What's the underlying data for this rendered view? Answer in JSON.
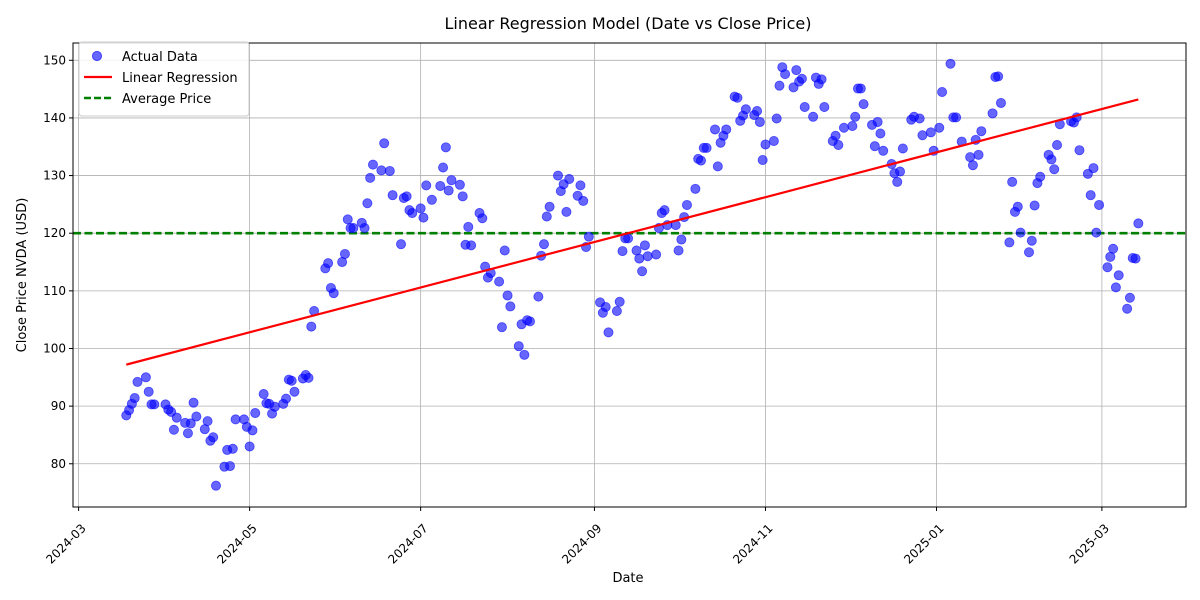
{
  "chart_data": {
    "type": "scatter",
    "title": "Linear Regression Model (Date vs Close Price)",
    "xlabel": "Date",
    "ylabel": "Close Price NVDA (USD)",
    "grid": true,
    "legend_position": "top-left",
    "xlim": [
      "2024-02-28",
      "2025-03-31"
    ],
    "ylim": [
      72.5,
      153
    ],
    "x_ticks": [
      "2024-03",
      "2024-05",
      "2024-07",
      "2024-09",
      "2024-11",
      "2025-01",
      "2025-03"
    ],
    "y_ticks": [
      80,
      90,
      100,
      110,
      120,
      130,
      140,
      150
    ],
    "series": [
      {
        "name": "Actual Data",
        "kind": "scatter",
        "color": "#0000ff",
        "points": [
          [
            "2024-03-18",
            88.4
          ],
          [
            "2024-03-19",
            89.3
          ],
          [
            "2024-03-20",
            90.4
          ],
          [
            "2024-03-21",
            91.4
          ],
          [
            "2024-03-22",
            94.2
          ],
          [
            "2024-03-25",
            95.0
          ],
          [
            "2024-03-26",
            92.5
          ],
          [
            "2024-03-27",
            90.3
          ],
          [
            "2024-03-28",
            90.3
          ],
          [
            "2024-04-01",
            90.3
          ],
          [
            "2024-04-02",
            89.4
          ],
          [
            "2024-04-03",
            89.0
          ],
          [
            "2024-04-04",
            85.9
          ],
          [
            "2024-04-05",
            88.0
          ],
          [
            "2024-04-08",
            87.1
          ],
          [
            "2024-04-09",
            85.3
          ],
          [
            "2024-04-10",
            87.0
          ],
          [
            "2024-04-11",
            90.6
          ],
          [
            "2024-04-12",
            88.2
          ],
          [
            "2024-04-15",
            86.0
          ],
          [
            "2024-04-16",
            87.4
          ],
          [
            "2024-04-17",
            84.0
          ],
          [
            "2024-04-18",
            84.6
          ],
          [
            "2024-04-19",
            76.2
          ],
          [
            "2024-04-22",
            79.5
          ],
          [
            "2024-04-23",
            82.4
          ],
          [
            "2024-04-24",
            79.6
          ],
          [
            "2024-04-25",
            82.6
          ],
          [
            "2024-04-26",
            87.7
          ],
          [
            "2024-04-29",
            87.7
          ],
          [
            "2024-04-30",
            86.4
          ],
          [
            "2024-05-01",
            83.0
          ],
          [
            "2024-05-02",
            85.8
          ],
          [
            "2024-05-03",
            88.8
          ],
          [
            "2024-05-06",
            92.1
          ],
          [
            "2024-05-07",
            90.5
          ],
          [
            "2024-05-08",
            90.4
          ],
          [
            "2024-05-09",
            88.7
          ],
          [
            "2024-05-10",
            89.9
          ],
          [
            "2024-05-13",
            90.4
          ],
          [
            "2024-05-14",
            91.3
          ],
          [
            "2024-05-15",
            94.6
          ],
          [
            "2024-05-16",
            94.4
          ],
          [
            "2024-05-17",
            92.5
          ],
          [
            "2024-05-20",
            94.8
          ],
          [
            "2024-05-21",
            95.4
          ],
          [
            "2024-05-22",
            94.9
          ],
          [
            "2024-05-23",
            103.8
          ],
          [
            "2024-05-24",
            106.5
          ],
          [
            "2024-05-28",
            113.9
          ],
          [
            "2024-05-29",
            114.8
          ],
          [
            "2024-05-30",
            110.5
          ],
          [
            "2024-05-31",
            109.6
          ],
          [
            "2024-06-03",
            115.0
          ],
          [
            "2024-06-04",
            116.4
          ],
          [
            "2024-06-05",
            122.4
          ],
          [
            "2024-06-06",
            120.9
          ],
          [
            "2024-06-07",
            120.9
          ],
          [
            "2024-06-10",
            121.8
          ],
          [
            "2024-06-11",
            120.9
          ],
          [
            "2024-06-12",
            125.2
          ],
          [
            "2024-06-13",
            129.6
          ],
          [
            "2024-06-14",
            131.9
          ],
          [
            "2024-06-17",
            130.9
          ],
          [
            "2024-06-18",
            135.6
          ],
          [
            "2024-06-20",
            130.8
          ],
          [
            "2024-06-21",
            126.6
          ],
          [
            "2024-06-24",
            118.1
          ],
          [
            "2024-06-25",
            126.1
          ],
          [
            "2024-06-26",
            126.4
          ],
          [
            "2024-06-27",
            124.0
          ],
          [
            "2024-06-28",
            123.5
          ],
          [
            "2024-07-01",
            124.3
          ],
          [
            "2024-07-02",
            122.7
          ],
          [
            "2024-07-03",
            128.3
          ],
          [
            "2024-07-05",
            125.8
          ],
          [
            "2024-07-08",
            128.2
          ],
          [
            "2024-07-09",
            131.4
          ],
          [
            "2024-07-10",
            134.9
          ],
          [
            "2024-07-11",
            127.4
          ],
          [
            "2024-07-12",
            129.2
          ],
          [
            "2024-07-15",
            128.4
          ],
          [
            "2024-07-16",
            126.4
          ],
          [
            "2024-07-17",
            118.0
          ],
          [
            "2024-07-18",
            121.1
          ],
          [
            "2024-07-19",
            117.9
          ],
          [
            "2024-07-22",
            123.5
          ],
          [
            "2024-07-23",
            122.6
          ],
          [
            "2024-07-24",
            114.2
          ],
          [
            "2024-07-25",
            112.3
          ],
          [
            "2024-07-26",
            113.1
          ],
          [
            "2024-07-29",
            111.6
          ],
          [
            "2024-07-30",
            103.7
          ],
          [
            "2024-07-31",
            117.0
          ],
          [
            "2024-08-01",
            109.2
          ],
          [
            "2024-08-02",
            107.3
          ],
          [
            "2024-08-05",
            100.4
          ],
          [
            "2024-08-06",
            104.2
          ],
          [
            "2024-08-07",
            98.9
          ],
          [
            "2024-08-08",
            104.9
          ],
          [
            "2024-08-09",
            104.7
          ],
          [
            "2024-08-12",
            109.0
          ],
          [
            "2024-08-13",
            116.1
          ],
          [
            "2024-08-14",
            118.1
          ],
          [
            "2024-08-15",
            122.9
          ],
          [
            "2024-08-16",
            124.6
          ],
          [
            "2024-08-19",
            130.0
          ],
          [
            "2024-08-20",
            127.3
          ],
          [
            "2024-08-21",
            128.5
          ],
          [
            "2024-08-22",
            123.7
          ],
          [
            "2024-08-23",
            129.4
          ],
          [
            "2024-08-26",
            126.5
          ],
          [
            "2024-08-27",
            128.3
          ],
          [
            "2024-08-28",
            125.6
          ],
          [
            "2024-08-29",
            117.6
          ],
          [
            "2024-08-30",
            119.4
          ],
          [
            "2024-09-03",
            108.0
          ],
          [
            "2024-09-04",
            106.2
          ],
          [
            "2024-09-05",
            107.2
          ],
          [
            "2024-09-06",
            102.8
          ],
          [
            "2024-09-09",
            106.5
          ],
          [
            "2024-09-10",
            108.1
          ],
          [
            "2024-09-11",
            116.9
          ],
          [
            "2024-09-12",
            119.1
          ],
          [
            "2024-09-13",
            119.1
          ],
          [
            "2024-09-16",
            117.0
          ],
          [
            "2024-09-17",
            115.6
          ],
          [
            "2024-09-18",
            113.4
          ],
          [
            "2024-09-19",
            117.9
          ],
          [
            "2024-09-20",
            116.0
          ],
          [
            "2024-09-23",
            116.3
          ],
          [
            "2024-09-24",
            120.9
          ],
          [
            "2024-09-25",
            123.5
          ],
          [
            "2024-09-26",
            124.0
          ],
          [
            "2024-09-27",
            121.4
          ],
          [
            "2024-09-30",
            121.4
          ],
          [
            "2024-10-01",
            117.0
          ],
          [
            "2024-10-02",
            118.9
          ],
          [
            "2024-10-03",
            122.8
          ],
          [
            "2024-10-04",
            124.9
          ],
          [
            "2024-10-07",
            127.7
          ],
          [
            "2024-10-08",
            132.9
          ],
          [
            "2024-10-09",
            132.6
          ],
          [
            "2024-10-10",
            134.8
          ],
          [
            "2024-10-11",
            134.8
          ],
          [
            "2024-10-14",
            138.0
          ],
          [
            "2024-10-15",
            131.6
          ],
          [
            "2024-10-16",
            135.7
          ],
          [
            "2024-10-17",
            136.9
          ],
          [
            "2024-10-18",
            138.0
          ],
          [
            "2024-10-21",
            143.7
          ],
          [
            "2024-10-22",
            143.5
          ],
          [
            "2024-10-23",
            139.5
          ],
          [
            "2024-10-24",
            140.4
          ],
          [
            "2024-10-25",
            141.5
          ],
          [
            "2024-10-28",
            140.5
          ],
          [
            "2024-10-29",
            141.2
          ],
          [
            "2024-10-30",
            139.3
          ],
          [
            "2024-10-31",
            132.7
          ],
          [
            "2024-11-01",
            135.4
          ],
          [
            "2024-11-04",
            136.0
          ],
          [
            "2024-11-05",
            139.9
          ],
          [
            "2024-11-06",
            145.6
          ],
          [
            "2024-11-07",
            148.8
          ],
          [
            "2024-11-08",
            147.6
          ],
          [
            "2024-11-11",
            145.3
          ],
          [
            "2024-11-12",
            148.3
          ],
          [
            "2024-11-13",
            146.3
          ],
          [
            "2024-11-14",
            146.8
          ],
          [
            "2024-11-15",
            141.9
          ],
          [
            "2024-11-18",
            140.2
          ],
          [
            "2024-11-19",
            147.0
          ],
          [
            "2024-11-20",
            145.9
          ],
          [
            "2024-11-21",
            146.7
          ],
          [
            "2024-11-22",
            141.9
          ],
          [
            "2024-11-25",
            136.0
          ],
          [
            "2024-11-26",
            136.9
          ],
          [
            "2024-11-27",
            135.3
          ],
          [
            "2024-11-29",
            138.3
          ],
          [
            "2024-12-02",
            138.6
          ],
          [
            "2024-12-03",
            140.2
          ],
          [
            "2024-12-04",
            145.1
          ],
          [
            "2024-12-05",
            145.1
          ],
          [
            "2024-12-06",
            142.4
          ],
          [
            "2024-12-09",
            138.8
          ],
          [
            "2024-12-10",
            135.1
          ],
          [
            "2024-12-11",
            139.3
          ],
          [
            "2024-12-12",
            137.3
          ],
          [
            "2024-12-13",
            134.3
          ],
          [
            "2024-12-16",
            132.0
          ],
          [
            "2024-12-17",
            130.4
          ],
          [
            "2024-12-18",
            128.9
          ],
          [
            "2024-12-19",
            130.7
          ],
          [
            "2024-12-20",
            134.7
          ],
          [
            "2024-12-23",
            139.7
          ],
          [
            "2024-12-24",
            140.2
          ],
          [
            "2024-12-26",
            139.9
          ],
          [
            "2024-12-27",
            137.0
          ],
          [
            "2024-12-30",
            137.5
          ],
          [
            "2024-12-31",
            134.3
          ],
          [
            "2025-01-02",
            138.3
          ],
          [
            "2025-01-03",
            144.5
          ],
          [
            "2025-01-06",
            149.4
          ],
          [
            "2025-01-07",
            140.1
          ],
          [
            "2025-01-08",
            140.1
          ],
          [
            "2025-01-10",
            135.9
          ],
          [
            "2025-01-13",
            133.2
          ],
          [
            "2025-01-14",
            131.8
          ],
          [
            "2025-01-15",
            136.2
          ],
          [
            "2025-01-16",
            133.6
          ],
          [
            "2025-01-17",
            137.7
          ],
          [
            "2025-01-21",
            140.8
          ],
          [
            "2025-01-22",
            147.1
          ],
          [
            "2025-01-23",
            147.2
          ],
          [
            "2025-01-24",
            142.6
          ],
          [
            "2025-01-27",
            118.4
          ],
          [
            "2025-01-28",
            128.9
          ],
          [
            "2025-01-29",
            123.7
          ],
          [
            "2025-01-30",
            124.6
          ],
          [
            "2025-01-31",
            120.1
          ],
          [
            "2025-02-03",
            116.7
          ],
          [
            "2025-02-04",
            118.7
          ],
          [
            "2025-02-05",
            124.8
          ],
          [
            "2025-02-06",
            128.7
          ],
          [
            "2025-02-07",
            129.8
          ],
          [
            "2025-02-10",
            133.6
          ],
          [
            "2025-02-11",
            132.8
          ],
          [
            "2025-02-12",
            131.1
          ],
          [
            "2025-02-13",
            135.3
          ],
          [
            "2025-02-14",
            138.9
          ],
          [
            "2025-02-18",
            139.4
          ],
          [
            "2025-02-19",
            139.2
          ],
          [
            "2025-02-20",
            140.1
          ],
          [
            "2025-02-21",
            134.4
          ],
          [
            "2025-02-24",
            130.3
          ],
          [
            "2025-02-25",
            126.6
          ],
          [
            "2025-02-26",
            131.3
          ],
          [
            "2025-02-27",
            120.1
          ],
          [
            "2025-02-28",
            124.9
          ],
          [
            "2025-03-03",
            114.1
          ],
          [
            "2025-03-04",
            115.9
          ],
          [
            "2025-03-05",
            117.3
          ],
          [
            "2025-03-06",
            110.6
          ],
          [
            "2025-03-07",
            112.7
          ],
          [
            "2025-03-10",
            106.9
          ],
          [
            "2025-03-11",
            108.8
          ],
          [
            "2025-03-12",
            115.7
          ],
          [
            "2025-03-13",
            115.6
          ],
          [
            "2025-03-14",
            121.7
          ]
        ]
      },
      {
        "name": "Linear Regression",
        "kind": "line",
        "color": "#ff0000",
        "points": [
          [
            "2024-03-18",
            97.2
          ],
          [
            "2025-03-14",
            143.2
          ]
        ]
      },
      {
        "name": "Average Price",
        "kind": "hline",
        "color": "#008000",
        "y": 120
      }
    ]
  }
}
